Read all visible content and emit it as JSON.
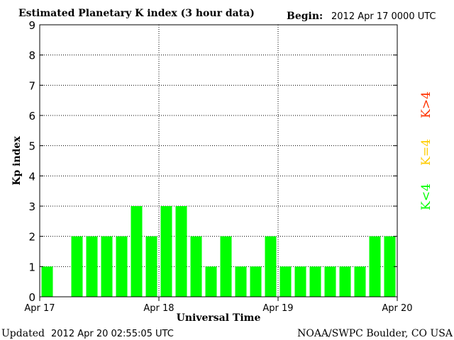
{
  "header": {
    "title": "Estimated Planetary K index (3 hour data)",
    "begin_label": "Begin:",
    "begin_value": "2012 Apr 17 0000 UTC"
  },
  "footer": {
    "updated_label": "Updated",
    "updated_value": "2012 Apr 20 02:55:05 UTC",
    "source": "NOAA/SWPC Boulder, CO USA"
  },
  "legend": {
    "high": "K>4",
    "mid": "K=4",
    "low": "K<4"
  },
  "colors": {
    "low": "#00ff00",
    "mid": "#ffcc00",
    "high": "#ff3300",
    "axis": "#000000"
  },
  "chart_data": {
    "type": "bar",
    "title": "Estimated Planetary K index (3 hour data)",
    "xlabel": "Universal Time",
    "ylabel": "Kp index",
    "ylim": [
      0,
      9
    ],
    "yticks": [
      "0",
      "1",
      "2",
      "3",
      "4",
      "5",
      "6",
      "7",
      "8",
      "9"
    ],
    "xticks": [
      "Apr 17",
      "Apr 18",
      "Apr 19",
      "Apr 20"
    ],
    "grid": true,
    "values": [
      1,
      0,
      2,
      2,
      2,
      2,
      3,
      2,
      3,
      3,
      2,
      1,
      2,
      1,
      1,
      2,
      1,
      1,
      1,
      1,
      1,
      1,
      2,
      2
    ]
  }
}
